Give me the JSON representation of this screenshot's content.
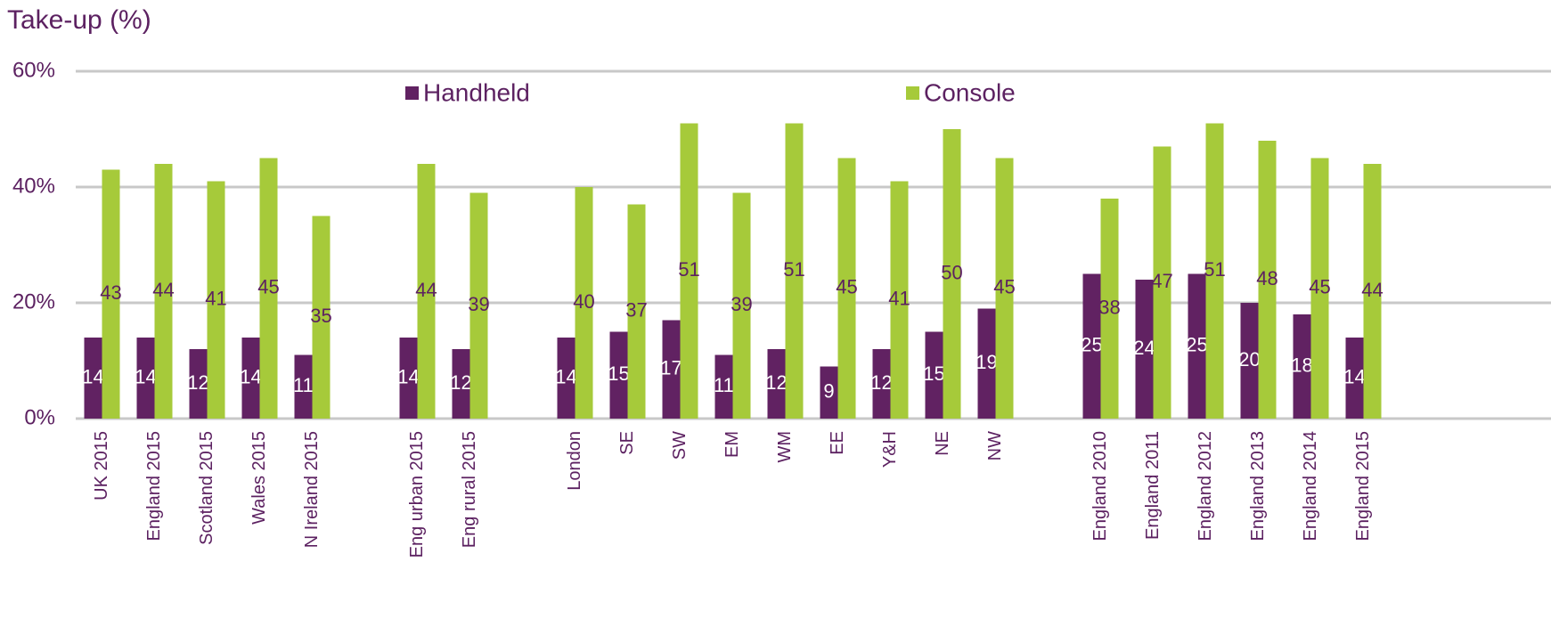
{
  "chart_data": {
    "type": "bar",
    "title": "Take-up (%)",
    "categories": [
      "UK 2015",
      "England 2015",
      "Scotland 2015",
      "Wales 2015",
      "N Ireland 2015",
      null,
      "Eng urban 2015",
      "Eng rural 2015",
      null,
      "London",
      "SE",
      "SW",
      "EM",
      "WM",
      "EE",
      "Y&H",
      "NE",
      "NW",
      null,
      "England 2010",
      "England 2011",
      "England 2012",
      "England 2013",
      "England 2014",
      "England 2015"
    ],
    "series": [
      {
        "name": "Handheld",
        "color": "#612262",
        "values": [
          14,
          14,
          12,
          14,
          11,
          null,
          14,
          12,
          null,
          14,
          15,
          17,
          11,
          12,
          9,
          12,
          15,
          19,
          null,
          25,
          24,
          25,
          20,
          18,
          14
        ]
      },
      {
        "name": "Console",
        "color": "#a6ca3a",
        "values": [
          43,
          44,
          41,
          45,
          35,
          null,
          44,
          39,
          null,
          40,
          37,
          51,
          39,
          51,
          45,
          41,
          50,
          45,
          null,
          38,
          47,
          51,
          48,
          45,
          44
        ]
      }
    ],
    "ylim": [
      0,
      60
    ],
    "yticks": [
      {
        "value": 0,
        "label": "0%"
      },
      {
        "value": 20,
        "label": "20%"
      },
      {
        "value": 40,
        "label": "40%"
      },
      {
        "value": 60,
        "label": "60%"
      }
    ],
    "grid": true,
    "legend": "top"
  }
}
